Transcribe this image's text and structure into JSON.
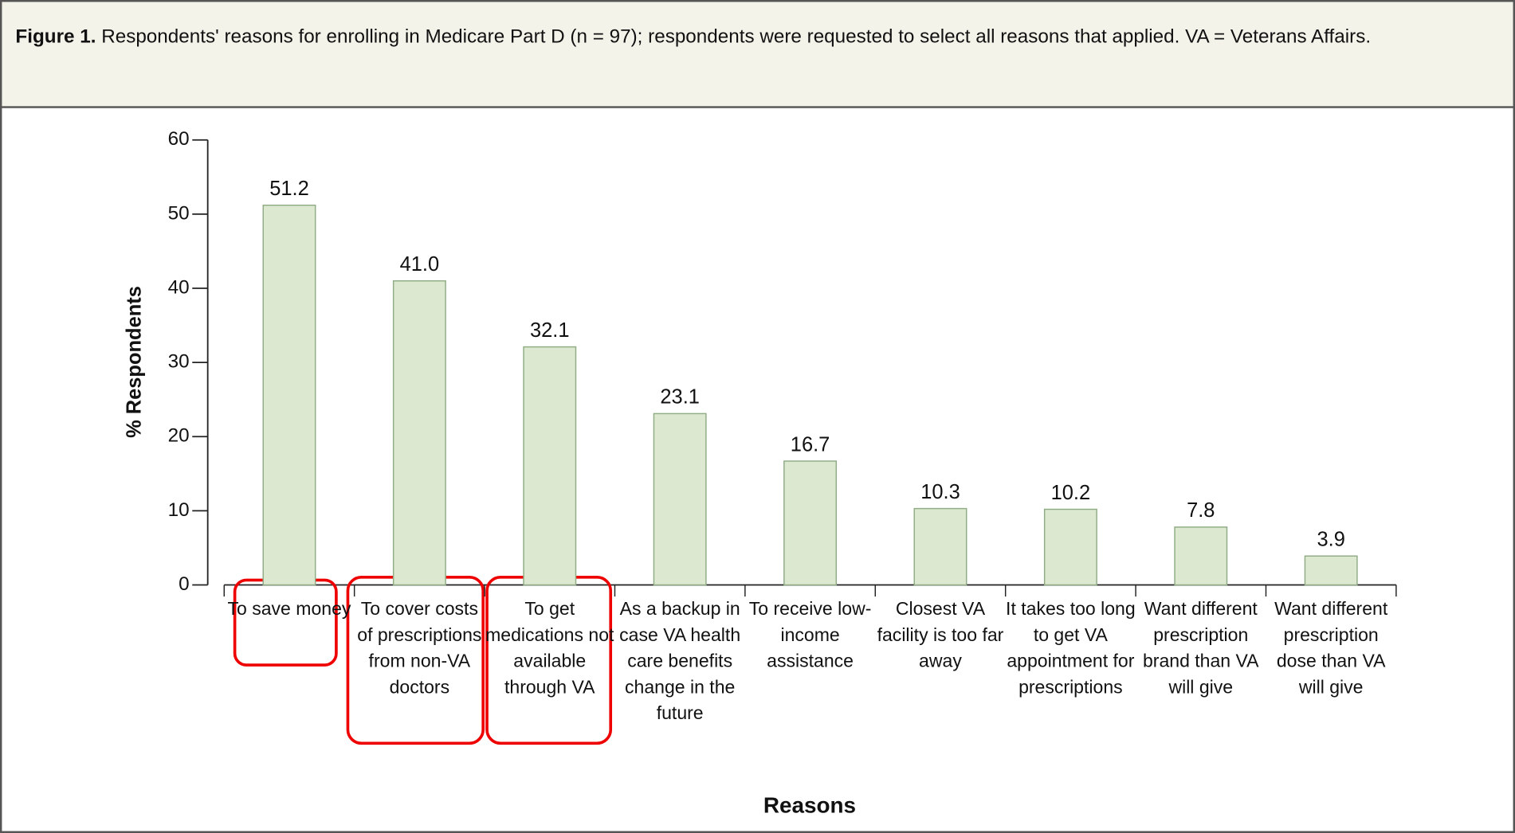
{
  "chart_data": {
    "type": "bar",
    "caption": {
      "label": "Figure 1.",
      "text": "Respondents' reasons for enrolling in Medicare Part D (n = 97); respondents were requested to select all reasons that applied. VA = Veterans Affairs."
    },
    "ylabel": "% Respondents",
    "xlabel": "Reasons",
    "categories": [
      "To save money",
      "To cover costs of prescriptions from non-VA doctors",
      "To get medications not available through VA",
      "As a backup in case VA health care benefits change in the future",
      "To receive low-income assistance",
      "Closest VA facility is too far away",
      "It takes too long to get VA appointment for prescriptions",
      "Want different prescription brand than VA will give",
      "Want different prescription dose than VA will give"
    ],
    "values": [
      51.2,
      41.0,
      32.1,
      23.1,
      16.7,
      10.3,
      10.2,
      7.8,
      3.9
    ],
    "value_labels": [
      "51.2",
      "41.0",
      "32.1",
      "23.1",
      "16.7",
      "10.3",
      "10.2",
      "7.8",
      "3.9"
    ],
    "color": "#dde8d0",
    "ylim": [
      0,
      60
    ],
    "yticks": [
      0,
      10,
      20,
      30,
      40,
      50,
      60
    ]
  }
}
